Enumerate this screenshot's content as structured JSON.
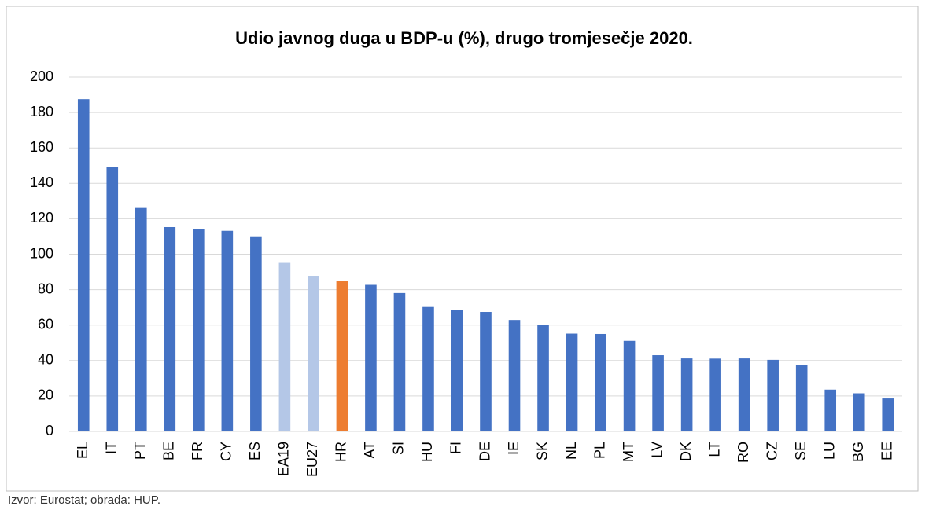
{
  "chart_data": {
    "type": "bar",
    "title": "Udio javnog duga u BDP-u (%), drugo tromjesečje 2020.",
    "categories": [
      "EL",
      "IT",
      "PT",
      "BE",
      "FR",
      "CY",
      "ES",
      "EA19",
      "EU27",
      "HR",
      "AT",
      "SI",
      "HU",
      "FI",
      "DE",
      "IE",
      "SK",
      "NL",
      "PL",
      "MT",
      "LV",
      "DK",
      "LT",
      "RO",
      "CZ",
      "SE",
      "LU",
      "BG",
      "EE"
    ],
    "values": [
      187.5,
      149.2,
      126.1,
      115.3,
      114.1,
      113.2,
      110.1,
      95.1,
      87.8,
      85.0,
      82.7,
      78.1,
      70.2,
      68.6,
      67.4,
      62.9,
      60.1,
      55.2,
      55.0,
      51.1,
      43.0,
      41.2,
      41.1,
      41.2,
      40.4,
      37.3,
      23.6,
      21.5,
      18.6
    ],
    "colors": [
      "#4472c4",
      "#4472c4",
      "#4472c4",
      "#4472c4",
      "#4472c4",
      "#4472c4",
      "#4472c4",
      "#b4c7e7",
      "#b4c7e7",
      "#ed7d31",
      "#4472c4",
      "#4472c4",
      "#4472c4",
      "#4472c4",
      "#4472c4",
      "#4472c4",
      "#4472c4",
      "#4472c4",
      "#4472c4",
      "#4472c4",
      "#4472c4",
      "#4472c4",
      "#4472c4",
      "#4472c4",
      "#4472c4",
      "#4472c4",
      "#4472c4",
      "#4472c4",
      "#4472c4"
    ],
    "ylim": [
      0,
      200
    ],
    "yticks": [
      0,
      20,
      40,
      60,
      80,
      100,
      120,
      140,
      160,
      180,
      200
    ],
    "grid": true,
    "source": "Izvor: Eurostat; obrada: HUP."
  }
}
